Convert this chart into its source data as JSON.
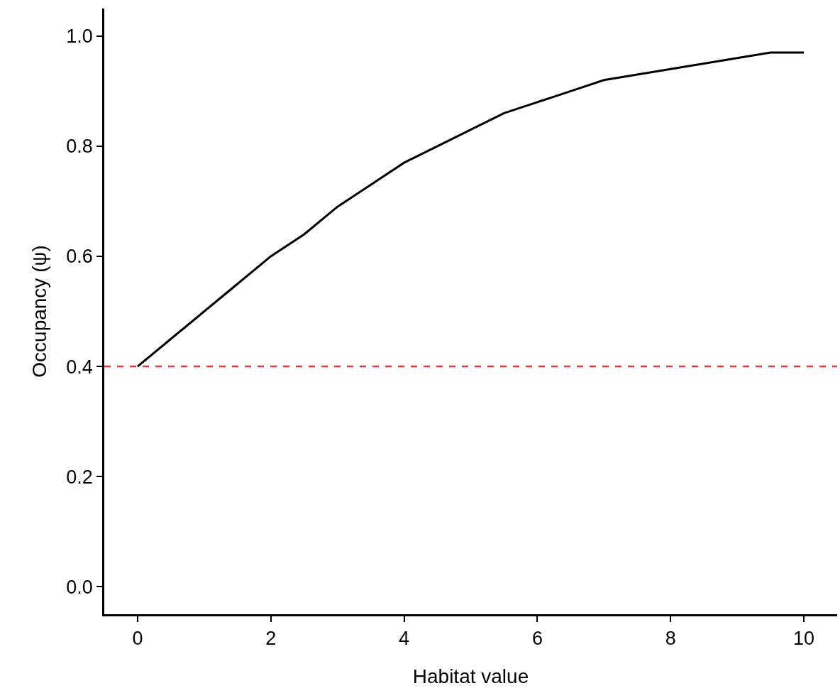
{
  "chart_data": {
    "type": "line",
    "xlabel": "Habitat value",
    "ylabel": "Occupancy (ψ)",
    "x": [
      0,
      0.5,
      1,
      1.5,
      2,
      2.5,
      3,
      3.5,
      4,
      4.5,
      5,
      5.5,
      6,
      6.5,
      7,
      7.5,
      8,
      8.5,
      9,
      9.5,
      10
    ],
    "series": [
      {
        "color": "#000000",
        "values": [
          0.4,
          0.45,
          0.5,
          0.55,
          0.6,
          0.64,
          0.69,
          0.73,
          0.77,
          0.8,
          0.83,
          0.86,
          0.88,
          0.9,
          0.92,
          0.93,
          0.94,
          0.95,
          0.96,
          0.97,
          0.97
        ]
      }
    ],
    "xlim": [
      -0.5,
      10.5
    ],
    "xticks": [
      0,
      2,
      4,
      6,
      8,
      10
    ],
    "ylim": [
      -0.05,
      1.05
    ],
    "yticks": [
      {
        "value": 0,
        "label": "0.0"
      },
      {
        "value": 0.2,
        "label": "0.2"
      },
      {
        "value": 0.4,
        "label": "0.4"
      },
      {
        "value": 0.6,
        "label": "0.6"
      },
      {
        "value": 0.8,
        "label": "0.8"
      },
      {
        "value": 1,
        "label": "1.0"
      }
    ],
    "ref_lines": [
      {
        "axis": "y",
        "value": 0.4,
        "color": "#e8392a",
        "line_style": "dashed"
      }
    ],
    "legend": false,
    "marker": "none",
    "line_style": "solid"
  }
}
